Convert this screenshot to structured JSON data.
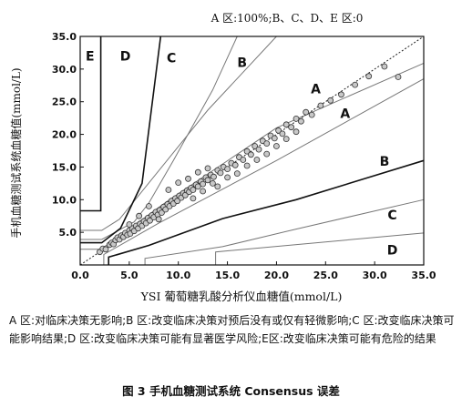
{
  "chart_data": {
    "type": "scatter",
    "annotation": "A 区:100%;B、C、D、E 区:0",
    "xlabel": "YSI 葡萄糖乳酸分析仪血糖值(mmol/L)",
    "ylabel": "手机血糖测试系统血糖值(mmol/L)",
    "xlim": [
      0,
      35
    ],
    "ylim": [
      0,
      35
    ],
    "xticks": [
      "0.0",
      "5.0",
      "10.0",
      "15.0",
      "20.0",
      "25.0",
      "30.0",
      "35.0"
    ],
    "yticks": [
      "5.0",
      "10.0",
      "15.0",
      "20.0",
      "25.0",
      "30.0",
      "35.0"
    ],
    "zone_labels": [
      {
        "text": "E",
        "x": 1.0,
        "y": 31.3
      },
      {
        "text": "D",
        "x": 4.6,
        "y": 31.3
      },
      {
        "text": "C",
        "x": 9.3,
        "y": 31.0
      },
      {
        "text": "B",
        "x": 16.5,
        "y": 30.3
      },
      {
        "text": "A",
        "x": 24.0,
        "y": 26.3
      },
      {
        "text": "A",
        "x": 27.0,
        "y": 22.5
      },
      {
        "text": "B",
        "x": 31.0,
        "y": 15.2
      },
      {
        "text": "C",
        "x": 31.8,
        "y": 7.0
      },
      {
        "text": "D",
        "x": 31.8,
        "y": 1.6
      }
    ],
    "zone_boundaries": {
      "inner": [
        [
          [
            0.0,
            2.4
          ],
          [
            2.1,
            2.4
          ],
          [
            9.1,
            10.0
          ],
          [
            20.0,
            21.0
          ],
          [
            35.0,
            30.9
          ]
        ],
        [
          [
            2.4,
            0.0
          ],
          [
            2.4,
            1.6
          ],
          [
            8.0,
            6.4
          ],
          [
            20.0,
            16.0
          ],
          [
            35.0,
            28.5
          ]
        ],
        [
          [
            0.0,
            5.3
          ],
          [
            2.2,
            5.3
          ],
          [
            4.0,
            7.0
          ],
          [
            13.0,
            23.7
          ],
          [
            20.0,
            35.0
          ]
        ],
        [
          [
            0.0,
            3.9
          ],
          [
            2.2,
            3.9
          ],
          [
            5.5,
            6.6
          ],
          [
            7.0,
            9.5
          ],
          [
            9.5,
            16.0
          ],
          [
            13.5,
            26.8
          ],
          [
            16.0,
            35.0
          ]
        ],
        [
          [
            2.9,
            0.0
          ],
          [
            2.9,
            1.2
          ],
          [
            7.0,
            3.0
          ],
          [
            14.5,
            7.1
          ],
          [
            22.0,
            10.0
          ],
          [
            35.0,
            16.0
          ]
        ],
        [
          [
            6.6,
            0.0
          ],
          [
            6.6,
            1.0
          ],
          [
            14.5,
            2.8
          ],
          [
            22.0,
            5.5
          ],
          [
            35.0,
            10.0
          ]
        ],
        [
          [
            13.8,
            0.0
          ],
          [
            13.8,
            2.0
          ],
          [
            35.0,
            4.9
          ]
        ]
      ],
      "bold": [
        [
          [
            0.0,
            8.3
          ],
          [
            2.1,
            8.3
          ],
          [
            2.1,
            35.0
          ]
        ],
        [
          [
            0.0,
            3.4
          ],
          [
            2.2,
            3.4
          ],
          [
            4.1,
            5.6
          ],
          [
            6.3,
            12.5
          ],
          [
            8.2,
            35.0
          ]
        ],
        [
          [
            2.9,
            0.0
          ],
          [
            2.9,
            1.2
          ],
          [
            7.0,
            3.0
          ],
          [
            14.5,
            7.1
          ],
          [
            22.0,
            10.0
          ],
          [
            35.0,
            16.0
          ]
        ]
      ]
    },
    "identity_line": [
      [
        0.0,
        0.0
      ],
      [
        35.0,
        35.0
      ]
    ],
    "points": [
      [
        2.0,
        2.0
      ],
      [
        2.3,
        2.5
      ],
      [
        2.6,
        2.4
      ],
      [
        3.0,
        3.1
      ],
      [
        3.2,
        3.4
      ],
      [
        3.4,
        3.2
      ],
      [
        3.6,
        3.8
      ],
      [
        3.8,
        4.2
      ],
      [
        4.0,
        3.9
      ],
      [
        4.2,
        4.5
      ],
      [
        4.4,
        4.3
      ],
      [
        4.6,
        4.9
      ],
      [
        4.8,
        4.6
      ],
      [
        5.0,
        5.3
      ],
      [
        5.1,
        4.8
      ],
      [
        5.3,
        5.6
      ],
      [
        5.5,
        5.2
      ],
      [
        5.7,
        6.0
      ],
      [
        5.9,
        5.6
      ],
      [
        6.1,
        6.3
      ],
      [
        6.3,
        6.0
      ],
      [
        6.5,
        6.7
      ],
      [
        6.7,
        6.4
      ],
      [
        6.9,
        7.2
      ],
      [
        7.1,
        6.8
      ],
      [
        7.3,
        7.6
      ],
      [
        7.5,
        7.3
      ],
      [
        7.7,
        8.1
      ],
      [
        7.9,
        7.7
      ],
      [
        8.1,
        8.4
      ],
      [
        8.3,
        8.0
      ],
      [
        8.5,
        8.9
      ],
      [
        8.7,
        8.5
      ],
      [
        8.9,
        9.3
      ],
      [
        9.1,
        9.0
      ],
      [
        9.3,
        9.8
      ],
      [
        9.5,
        9.4
      ],
      [
        9.7,
        10.2
      ],
      [
        9.9,
        9.8
      ],
      [
        10.1,
        10.6
      ],
      [
        10.3,
        10.3
      ],
      [
        10.5,
        11.0
      ],
      [
        10.7,
        10.7
      ],
      [
        10.9,
        11.4
      ],
      [
        11.1,
        11.2
      ],
      [
        11.3,
        11.8
      ],
      [
        11.5,
        11.5
      ],
      [
        11.8,
        12.3
      ],
      [
        12.0,
        12.0
      ],
      [
        12.3,
        12.8
      ],
      [
        12.5,
        12.4
      ],
      [
        12.8,
        13.4
      ],
      [
        13.0,
        13.0
      ],
      [
        13.3,
        13.8
      ],
      [
        13.6,
        13.5
      ],
      [
        14.0,
        14.5
      ],
      [
        14.3,
        14.1
      ],
      [
        14.6,
        15.0
      ],
      [
        15.0,
        14.7
      ],
      [
        15.4,
        15.6
      ],
      [
        15.8,
        15.3
      ],
      [
        16.2,
        16.5
      ],
      [
        16.6,
        16.1
      ],
      [
        17.0,
        17.4
      ],
      [
        17.4,
        16.9
      ],
      [
        17.8,
        18.2
      ],
      [
        18.2,
        17.7
      ],
      [
        18.6,
        19.0
      ],
      [
        19.0,
        18.6
      ],
      [
        19.4,
        19.8
      ],
      [
        19.8,
        19.4
      ],
      [
        20.2,
        20.6
      ],
      [
        20.6,
        20.1
      ],
      [
        21.0,
        21.5
      ],
      [
        21.5,
        21.1
      ],
      [
        22.0,
        22.4
      ],
      [
        22.5,
        22.0
      ],
      [
        23.0,
        23.4
      ],
      [
        23.6,
        23.0
      ],
      [
        24.5,
        24.4
      ],
      [
        25.5,
        25.2
      ],
      [
        26.6,
        26.1
      ],
      [
        28.0,
        27.6
      ],
      [
        29.4,
        28.9
      ],
      [
        31.0,
        30.4
      ],
      [
        32.4,
        28.8
      ],
      [
        9.0,
        11.5
      ],
      [
        10.0,
        12.6
      ],
      [
        11.0,
        13.2
      ],
      [
        12.0,
        14.2
      ],
      [
        13.0,
        14.8
      ],
      [
        14.0,
        12.0
      ],
      [
        15.0,
        13.4
      ],
      [
        16.0,
        14.0
      ],
      [
        17.0,
        15.2
      ],
      [
        18.0,
        16.1
      ],
      [
        19.0,
        17.0
      ],
      [
        20.0,
        18.2
      ],
      [
        21.0,
        19.3
      ],
      [
        22.0,
        20.4
      ],
      [
        7.0,
        9.0
      ],
      [
        8.0,
        7.0
      ],
      [
        6.0,
        7.5
      ],
      [
        5.0,
        6.2
      ],
      [
        11.5,
        10.2
      ],
      [
        12.5,
        11.3
      ],
      [
        13.5,
        12.5
      ]
    ]
  },
  "caption": "A 区:对临床决策无影响;B 区:改变临床决策对预后没有或仅有轻微影响;C 区:改变临床决策可能影响结果;D 区:改变临床决策可能有显著医学风险;E区:改变临床决策可能有危险的结果",
  "figure_title": "图 3   手机血糖测试系统 Consensus 误差"
}
